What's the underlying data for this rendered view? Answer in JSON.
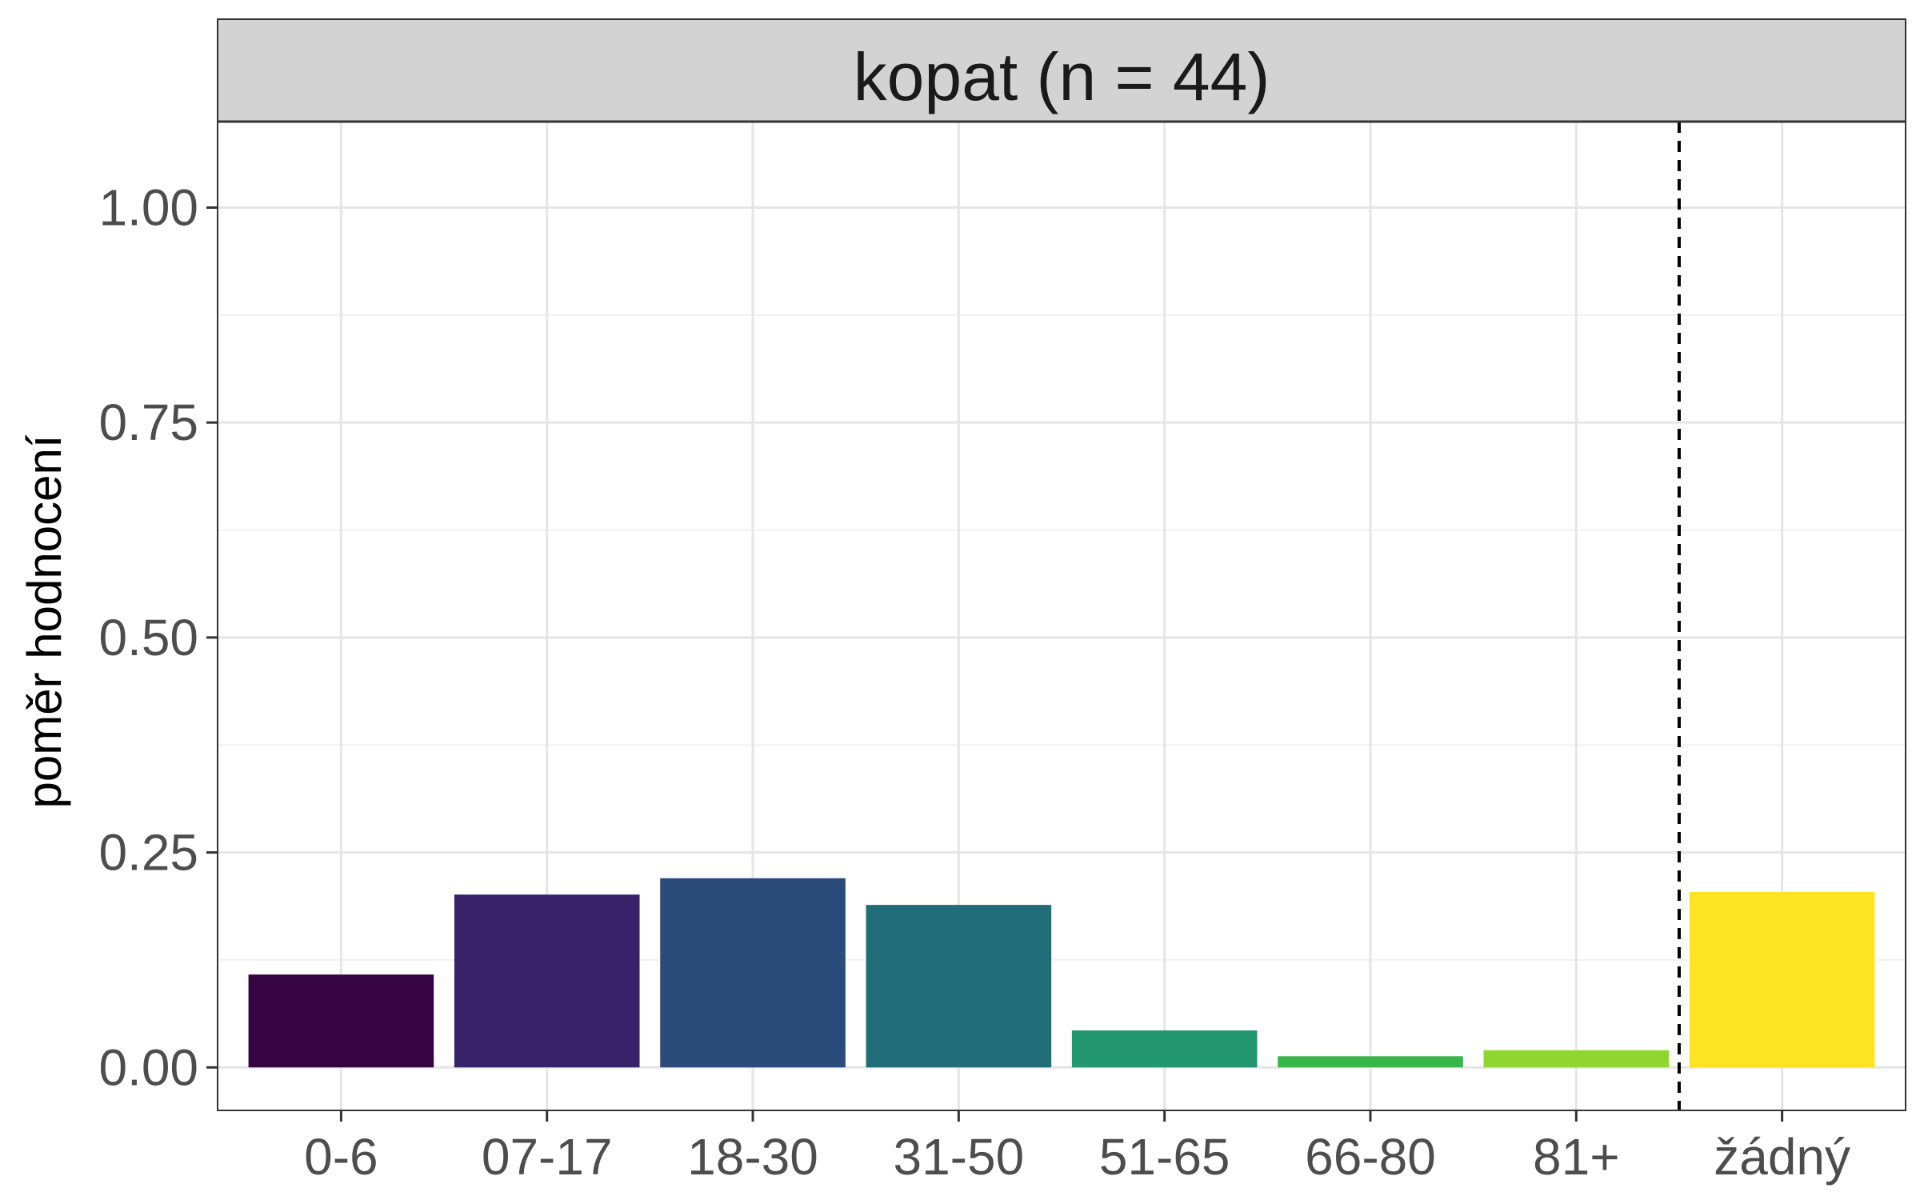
{
  "chart_data": {
    "type": "bar",
    "title": "kopat (n = 44)",
    "xlabel": "",
    "ylabel": "poměr hodnocení",
    "categories": [
      "0-6",
      "07-17",
      "18-30",
      "31-50",
      "51-65",
      "66-80",
      "81+",
      "žádný"
    ],
    "values": [
      0.108,
      0.201,
      0.22,
      0.189,
      0.043,
      0.013,
      0.02,
      0.204
    ],
    "colors": [
      "#360440",
      "#38226a",
      "#2b4b7a",
      "#216e7a",
      "#21966f",
      "#38b54b",
      "#8fd630",
      "#fde322"
    ],
    "ylim": [
      -0.05,
      1.1
    ],
    "yticks": [
      0.0,
      0.25,
      0.5,
      0.75,
      1.0
    ],
    "ytick_labels": [
      "0.00",
      "0.25",
      "0.50",
      "0.75",
      "1.00"
    ],
    "reference_line": {
      "between": [
        "81+",
        "žádný"
      ],
      "style": "dashed"
    },
    "grid": true,
    "legend": "none"
  }
}
